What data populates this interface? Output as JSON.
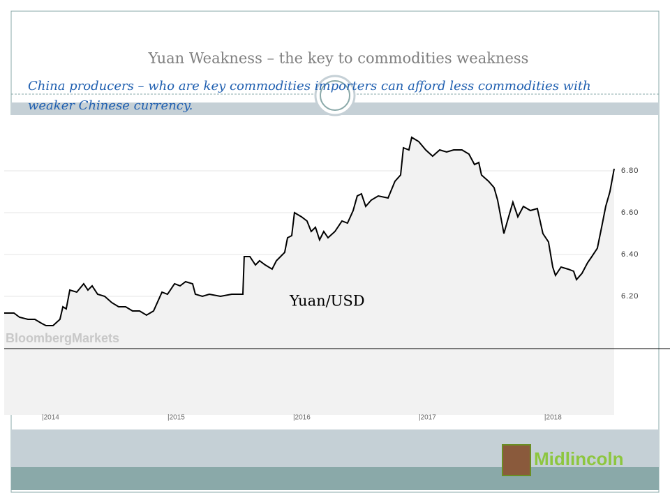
{
  "chart_data": {
    "type": "line",
    "title": "Yuan Weakness – the  key to commodities weakness",
    "subtitle": "China producers – who are key  commodities importers can afford less commodities with weaker Chinese currency.",
    "annotation": "Yuan/USD",
    "watermark": "BloombergMarkets",
    "logo": "Midlincoln",
    "color": "#000000",
    "x": [
      2013.7,
      2013.778,
      2013.822,
      2013.889,
      2013.944,
      2014.0,
      2014.033,
      2014.089,
      2014.144,
      2014.167,
      2014.194,
      2014.222,
      2014.278,
      2014.333,
      2014.367,
      2014.4,
      2014.444,
      2014.5,
      2014.556,
      2014.611,
      2014.667,
      2014.722,
      2014.778,
      2014.833,
      2014.889,
      2014.956,
      2015.0,
      2015.056,
      2015.1,
      2015.144,
      2015.2,
      2015.222,
      2015.278,
      2015.333,
      2015.422,
      2015.511,
      2015.6,
      2015.611,
      2015.656,
      2015.7,
      2015.733,
      2015.778,
      2015.833,
      2015.867,
      2015.933,
      2015.956,
      2015.989,
      2016.011,
      2016.067,
      2016.111,
      2016.144,
      2016.178,
      2016.211,
      2016.244,
      2016.278,
      2016.333,
      2016.389,
      2016.433,
      2016.478,
      2016.511,
      2016.544,
      2016.578,
      2016.622,
      2016.678,
      2016.756,
      2016.811,
      2016.856,
      2016.878,
      2016.922,
      2016.944,
      2017.0,
      2017.056,
      2017.111,
      2017.167,
      2017.222,
      2017.278,
      2017.344,
      2017.4,
      2017.444,
      2017.478,
      2017.5,
      2017.556,
      2017.6,
      2017.628,
      2017.678,
      2017.711,
      2017.75,
      2017.789,
      2017.833,
      2017.889,
      2017.944,
      2017.989,
      2018.033,
      2018.067,
      2018.089,
      2018.133,
      2018.189,
      2018.233,
      2018.256,
      2018.3,
      2018.344,
      2018.378,
      2018.422,
      2018.456,
      2018.489,
      2018.522,
      2018.556
    ],
    "values": [
      6.12,
      6.12,
      6.1,
      6.09,
      6.09,
      6.07,
      6.06,
      6.06,
      6.09,
      6.15,
      6.14,
      6.23,
      6.22,
      6.26,
      6.23,
      6.25,
      6.21,
      6.2,
      6.17,
      6.15,
      6.15,
      6.13,
      6.13,
      6.11,
      6.13,
      6.22,
      6.21,
      6.26,
      6.25,
      6.27,
      6.26,
      6.21,
      6.2,
      6.21,
      6.2,
      6.21,
      6.21,
      6.39,
      6.39,
      6.35,
      6.37,
      6.35,
      6.33,
      6.37,
      6.41,
      6.48,
      6.49,
      6.6,
      6.58,
      6.56,
      6.51,
      6.53,
      6.47,
      6.51,
      6.48,
      6.51,
      6.56,
      6.55,
      6.61,
      6.68,
      6.69,
      6.63,
      6.66,
      6.68,
      6.67,
      6.75,
      6.78,
      6.91,
      6.9,
      6.96,
      6.94,
      6.9,
      6.87,
      6.9,
      6.89,
      6.9,
      6.9,
      6.88,
      6.83,
      6.84,
      6.78,
      6.75,
      6.72,
      6.66,
      6.5,
      6.57,
      6.65,
      6.58,
      6.63,
      6.61,
      6.62,
      6.5,
      6.46,
      6.34,
      6.3,
      6.34,
      6.33,
      6.32,
      6.28,
      6.31,
      6.36,
      6.39,
      6.43,
      6.53,
      6.63,
      6.7,
      6.81
    ],
    "xlim": [
      2013.7,
      2018.556
    ],
    "ylim": [
      5.95,
      7.0
    ],
    "xticks": [
      {
        "value": 2014,
        "label": "|2014"
      },
      {
        "value": 2015,
        "label": "|2015"
      },
      {
        "value": 2016,
        "label": "|2016"
      },
      {
        "value": 2017,
        "label": "|2017"
      },
      {
        "value": 2018,
        "label": "|2018"
      }
    ],
    "yticks": [
      {
        "value": 6.2,
        "label": "6.20"
      },
      {
        "value": 6.4,
        "label": "6.40"
      },
      {
        "value": 6.6,
        "label": "6.60"
      },
      {
        "value": 6.8,
        "label": "6.80"
      }
    ],
    "grid": true
  }
}
